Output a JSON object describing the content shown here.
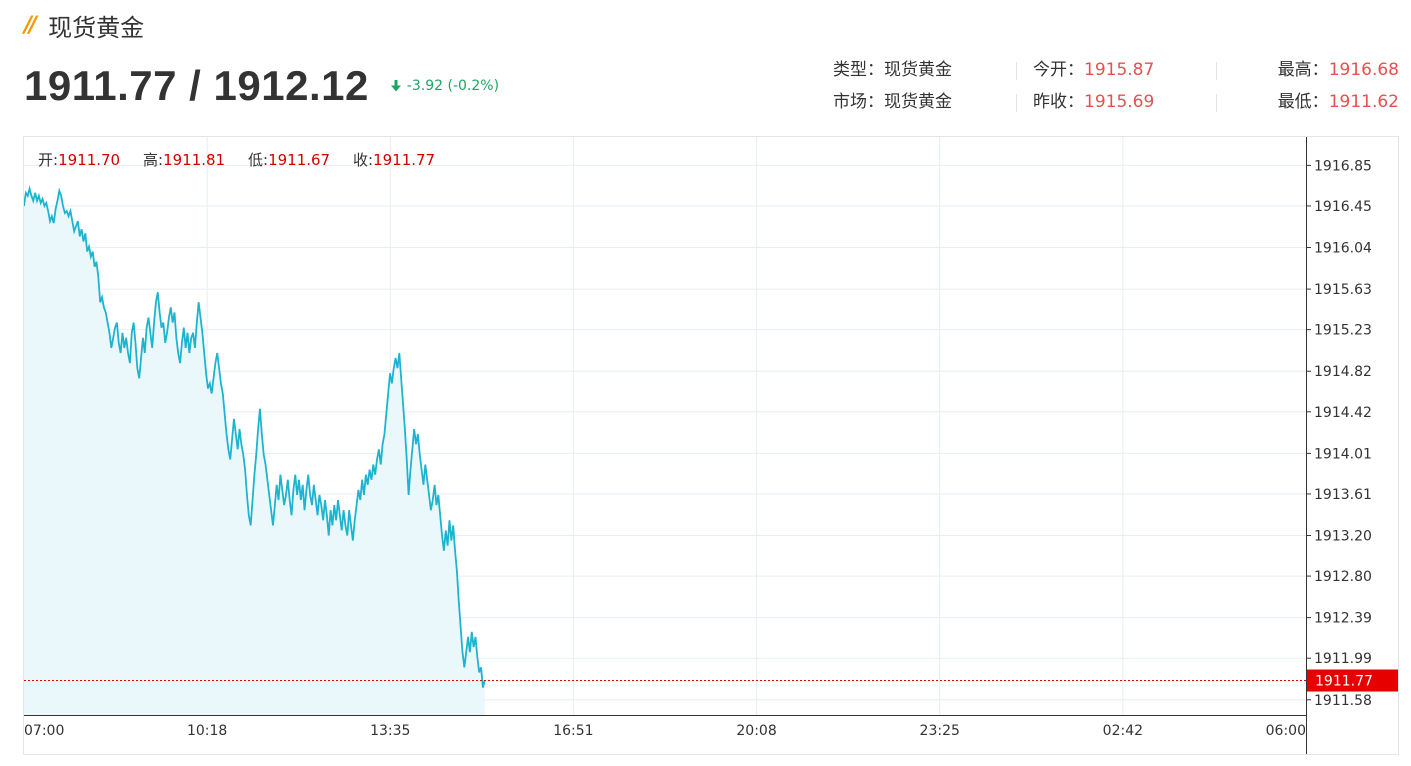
{
  "header": {
    "logo_icon": "double-slash-logo-icon",
    "title": "现货黄金"
  },
  "quote": {
    "price_pair": "1911.77 / 1912.12",
    "change_icon": "arrow-down-icon",
    "change": "-3.92 (-0.2%)",
    "change_color": "#21a366"
  },
  "info": {
    "type_label": "类型：",
    "type_value": "现货黄金",
    "market_label": "市场：",
    "market_value": "现货黄金",
    "open_label": "今开：",
    "open_value": "1915.87",
    "prev_close_label": "昨收：",
    "prev_close_value": "1915.69",
    "high_label": "最高：",
    "high_value": "1916.68",
    "low_label": "最低：",
    "low_value": "1911.62",
    "value_color": "#e8504f"
  },
  "chart_data": {
    "type": "line",
    "ohlc": [
      {
        "label": "开:",
        "value": "1911.70"
      },
      {
        "label": "高:",
        "value": "1911.81"
      },
      {
        "label": "低:",
        "value": "1911.67"
      },
      {
        "label": "收:",
        "value": "1911.77"
      }
    ],
    "x_ticks": [
      "07:00",
      "10:18",
      "13:35",
      "16:51",
      "20:08",
      "23:25",
      "02:42",
      "06:00"
    ],
    "x_range_minutes": [
      0,
      1380
    ],
    "y_ticks": [
      "1916.85",
      "1916.45",
      "1916.04",
      "1915.63",
      "1915.23",
      "1914.82",
      "1914.42",
      "1914.01",
      "1913.61",
      "1913.20",
      "1912.80",
      "1912.39",
      "1911.99",
      "1911.58"
    ],
    "ylim": [
      1911.43,
      1917.13
    ],
    "current_price": "1911.77",
    "current_price_value": 1911.77,
    "line_color": "#1eb4d0",
    "fill_color": "#eaf8fb",
    "current_line_color": "#e60000",
    "grid": true,
    "series": [
      {
        "points": [
          [
            0,
            1916.45
          ],
          [
            1,
            1916.52
          ],
          [
            2,
            1916.58
          ],
          [
            4,
            1916.55
          ],
          [
            6,
            1916.62
          ],
          [
            8,
            1916.55
          ],
          [
            10,
            1916.5
          ],
          [
            12,
            1916.58
          ],
          [
            14,
            1916.5
          ],
          [
            16,
            1916.55
          ],
          [
            18,
            1916.48
          ],
          [
            20,
            1916.52
          ],
          [
            22,
            1916.45
          ],
          [
            24,
            1916.48
          ],
          [
            26,
            1916.4
          ],
          [
            28,
            1916.3
          ],
          [
            30,
            1916.35
          ],
          [
            32,
            1916.28
          ],
          [
            34,
            1916.42
          ],
          [
            36,
            1916.5
          ],
          [
            38,
            1916.6
          ],
          [
            40,
            1916.55
          ],
          [
            42,
            1916.45
          ],
          [
            44,
            1916.38
          ],
          [
            46,
            1916.4
          ],
          [
            48,
            1916.35
          ],
          [
            50,
            1916.4
          ],
          [
            52,
            1916.3
          ],
          [
            54,
            1916.2
          ],
          [
            56,
            1916.25
          ],
          [
            58,
            1916.3
          ],
          [
            60,
            1916.15
          ],
          [
            62,
            1916.22
          ],
          [
            64,
            1916.1
          ],
          [
            66,
            1916.18
          ],
          [
            68,
            1916.0
          ],
          [
            70,
            1916.05
          ],
          [
            72,
            1915.95
          ],
          [
            74,
            1916.0
          ],
          [
            76,
            1915.85
          ],
          [
            78,
            1915.9
          ],
          [
            80,
            1915.75
          ],
          [
            82,
            1915.5
          ],
          [
            84,
            1915.55
          ],
          [
            86,
            1915.45
          ],
          [
            88,
            1915.4
          ],
          [
            90,
            1915.3
          ],
          [
            92,
            1915.2
          ],
          [
            94,
            1915.05
          ],
          [
            96,
            1915.15
          ],
          [
            98,
            1915.25
          ],
          [
            100,
            1915.3
          ],
          [
            102,
            1915.1
          ],
          [
            104,
            1915.0
          ],
          [
            106,
            1915.2
          ],
          [
            108,
            1915.05
          ],
          [
            110,
            1915.15
          ],
          [
            112,
            1915.0
          ],
          [
            114,
            1914.9
          ],
          [
            116,
            1915.2
          ],
          [
            118,
            1915.3
          ],
          [
            120,
            1915.1
          ],
          [
            122,
            1914.85
          ],
          [
            124,
            1914.75
          ],
          [
            126,
            1914.95
          ],
          [
            128,
            1915.15
          ],
          [
            130,
            1915.0
          ],
          [
            132,
            1915.25
          ],
          [
            134,
            1915.35
          ],
          [
            136,
            1915.2
          ],
          [
            138,
            1915.05
          ],
          [
            140,
            1915.3
          ],
          [
            142,
            1915.5
          ],
          [
            144,
            1915.6
          ],
          [
            146,
            1915.4
          ],
          [
            148,
            1915.25
          ],
          [
            150,
            1915.3
          ],
          [
            152,
            1915.1
          ],
          [
            154,
            1915.2
          ],
          [
            156,
            1915.35
          ],
          [
            158,
            1915.45
          ],
          [
            160,
            1915.3
          ],
          [
            162,
            1915.4
          ],
          [
            164,
            1915.15
          ],
          [
            166,
            1915.0
          ],
          [
            168,
            1914.9
          ],
          [
            170,
            1915.1
          ],
          [
            172,
            1915.25
          ],
          [
            174,
            1915.05
          ],
          [
            176,
            1915.2
          ],
          [
            178,
            1915.0
          ],
          [
            180,
            1915.15
          ],
          [
            182,
            1915.2
          ],
          [
            184,
            1915.05
          ],
          [
            186,
            1915.3
          ],
          [
            188,
            1915.5
          ],
          [
            190,
            1915.35
          ],
          [
            192,
            1915.2
          ],
          [
            194,
            1915.0
          ],
          [
            196,
            1914.8
          ],
          [
            198,
            1914.65
          ],
          [
            200,
            1914.7
          ],
          [
            202,
            1914.6
          ],
          [
            204,
            1914.75
          ],
          [
            206,
            1914.9
          ],
          [
            208,
            1915.0
          ],
          [
            210,
            1914.85
          ],
          [
            212,
            1914.7
          ],
          [
            214,
            1914.6
          ],
          [
            216,
            1914.4
          ],
          [
            218,
            1914.2
          ],
          [
            220,
            1914.05
          ],
          [
            222,
            1913.95
          ],
          [
            224,
            1914.15
          ],
          [
            226,
            1914.35
          ],
          [
            228,
            1914.2
          ],
          [
            230,
            1914.05
          ],
          [
            232,
            1914.25
          ],
          [
            234,
            1914.1
          ],
          [
            236,
            1914.0
          ],
          [
            238,
            1913.85
          ],
          [
            240,
            1913.6
          ],
          [
            242,
            1913.4
          ],
          [
            244,
            1913.3
          ],
          [
            246,
            1913.55
          ],
          [
            248,
            1913.8
          ],
          [
            250,
            1914.0
          ],
          [
            252,
            1914.25
          ],
          [
            254,
            1914.45
          ],
          [
            256,
            1914.2
          ],
          [
            258,
            1914.0
          ],
          [
            260,
            1913.9
          ],
          [
            262,
            1913.75
          ],
          [
            264,
            1913.6
          ],
          [
            266,
            1913.45
          ],
          [
            268,
            1913.3
          ],
          [
            270,
            1913.5
          ],
          [
            272,
            1913.7
          ],
          [
            274,
            1913.55
          ],
          [
            276,
            1913.8
          ],
          [
            278,
            1913.65
          ],
          [
            280,
            1913.5
          ],
          [
            282,
            1913.6
          ],
          [
            284,
            1913.75
          ],
          [
            286,
            1913.55
          ],
          [
            288,
            1913.4
          ],
          [
            290,
            1913.65
          ],
          [
            292,
            1913.8
          ],
          [
            294,
            1913.6
          ],
          [
            296,
            1913.75
          ],
          [
            298,
            1913.55
          ],
          [
            300,
            1913.7
          ],
          [
            302,
            1913.45
          ],
          [
            304,
            1913.65
          ],
          [
            306,
            1913.8
          ],
          [
            308,
            1913.6
          ],
          [
            310,
            1913.5
          ],
          [
            312,
            1913.7
          ],
          [
            314,
            1913.55
          ],
          [
            316,
            1913.4
          ],
          [
            318,
            1913.6
          ],
          [
            320,
            1913.5
          ],
          [
            322,
            1913.35
          ],
          [
            324,
            1913.55
          ],
          [
            326,
            1913.4
          ],
          [
            328,
            1913.2
          ],
          [
            330,
            1913.45
          ],
          [
            332,
            1913.3
          ],
          [
            334,
            1913.5
          ],
          [
            336,
            1913.35
          ],
          [
            338,
            1913.55
          ],
          [
            340,
            1913.4
          ],
          [
            342,
            1913.25
          ],
          [
            344,
            1913.45
          ],
          [
            346,
            1913.3
          ],
          [
            348,
            1913.2
          ],
          [
            350,
            1913.45
          ],
          [
            352,
            1913.3
          ],
          [
            354,
            1913.15
          ],
          [
            356,
            1913.35
          ],
          [
            358,
            1913.5
          ],
          [
            360,
            1913.65
          ],
          [
            362,
            1913.55
          ],
          [
            364,
            1913.75
          ],
          [
            366,
            1913.6
          ],
          [
            368,
            1913.8
          ],
          [
            370,
            1913.7
          ],
          [
            372,
            1913.85
          ],
          [
            374,
            1913.75
          ],
          [
            376,
            1913.9
          ],
          [
            378,
            1913.8
          ],
          [
            380,
            1913.95
          ],
          [
            382,
            1914.05
          ],
          [
            384,
            1913.9
          ],
          [
            386,
            1914.1
          ],
          [
            388,
            1914.2
          ],
          [
            390,
            1914.4
          ],
          [
            392,
            1914.6
          ],
          [
            394,
            1914.8
          ],
          [
            396,
            1914.7
          ],
          [
            398,
            1914.85
          ],
          [
            400,
            1914.95
          ],
          [
            402,
            1914.85
          ],
          [
            404,
            1915.0
          ],
          [
            406,
            1914.75
          ],
          [
            408,
            1914.5
          ],
          [
            410,
            1914.25
          ],
          [
            412,
            1913.95
          ],
          [
            414,
            1913.6
          ],
          [
            416,
            1913.85
          ],
          [
            418,
            1914.05
          ],
          [
            420,
            1914.25
          ],
          [
            422,
            1914.1
          ],
          [
            424,
            1914.2
          ],
          [
            426,
            1914.0
          ],
          [
            428,
            1913.85
          ],
          [
            430,
            1913.7
          ],
          [
            432,
            1913.9
          ],
          [
            434,
            1913.75
          ],
          [
            436,
            1913.6
          ],
          [
            438,
            1913.45
          ],
          [
            440,
            1913.55
          ],
          [
            442,
            1913.7
          ],
          [
            444,
            1913.5
          ],
          [
            446,
            1913.6
          ],
          [
            448,
            1913.4
          ],
          [
            450,
            1913.2
          ],
          [
            452,
            1913.05
          ],
          [
            454,
            1913.25
          ],
          [
            456,
            1913.1
          ],
          [
            458,
            1913.35
          ],
          [
            460,
            1913.15
          ],
          [
            462,
            1913.3
          ],
          [
            464,
            1913.05
          ],
          [
            466,
            1912.85
          ],
          [
            468,
            1912.55
          ],
          [
            470,
            1912.3
          ],
          [
            472,
            1912.05
          ],
          [
            474,
            1911.9
          ],
          [
            476,
            1912.05
          ],
          [
            478,
            1912.2
          ],
          [
            480,
            1912.05
          ],
          [
            482,
            1912.25
          ],
          [
            484,
            1912.1
          ],
          [
            486,
            1912.2
          ],
          [
            488,
            1912.0
          ],
          [
            490,
            1911.85
          ],
          [
            492,
            1911.9
          ],
          [
            494,
            1911.7
          ],
          [
            496,
            1911.77
          ]
        ]
      }
    ]
  }
}
